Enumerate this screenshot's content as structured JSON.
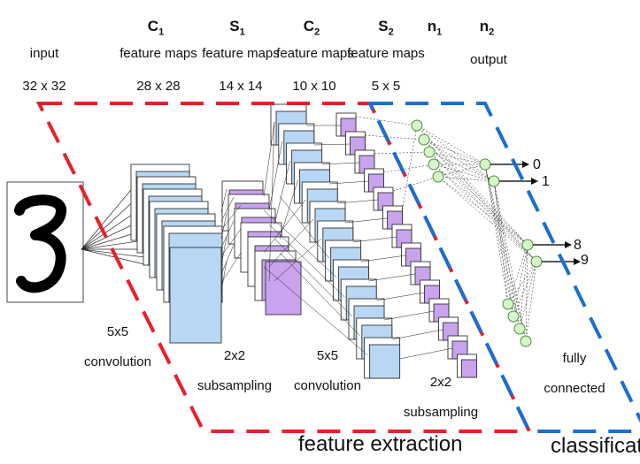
{
  "headers": {
    "c1": {
      "letter": "C",
      "index": "1"
    },
    "s1": {
      "letter": "S",
      "index": "1"
    },
    "c2": {
      "letter": "C",
      "index": "2"
    },
    "s2": {
      "letter": "S",
      "index": "2"
    },
    "n1": {
      "letter": "n",
      "index": "1"
    },
    "n2": {
      "letter": "n",
      "index": "2"
    }
  },
  "layers": {
    "input": {
      "name": "input",
      "size": "32 x 32"
    },
    "c1": {
      "name": "feature maps",
      "size": "28 x 28"
    },
    "s1": {
      "name": "feature maps",
      "size": "14 x 14"
    },
    "c2": {
      "name": "feature maps",
      "size": "10 x 10"
    },
    "s2": {
      "name": "feature maps",
      "size": "5 x 5"
    },
    "n2": {
      "name": "output"
    }
  },
  "operations": {
    "conv1": {
      "line1": "5x5",
      "line2": "convolution"
    },
    "sub1": {
      "line1": "2x2",
      "line2": "subsampling"
    },
    "conv2": {
      "line1": "5x5",
      "line2": "convolution"
    },
    "sub2": {
      "line1": "2x2",
      "line2": "subsampling"
    },
    "fc": {
      "line1": "fully",
      "line2": "connected"
    }
  },
  "input_digit": "3",
  "outputs": [
    "0",
    "1",
    "8",
    "9"
  ],
  "regions": {
    "feature_extraction": "feature extraction",
    "classification": "classification"
  },
  "colors": {
    "blue_map": "#b7d7f5",
    "purple_map": "#c9a3ee",
    "neuron": "#d6f5c8",
    "red_dash": "#e8202a",
    "blue_dash": "#1a6fd0"
  }
}
